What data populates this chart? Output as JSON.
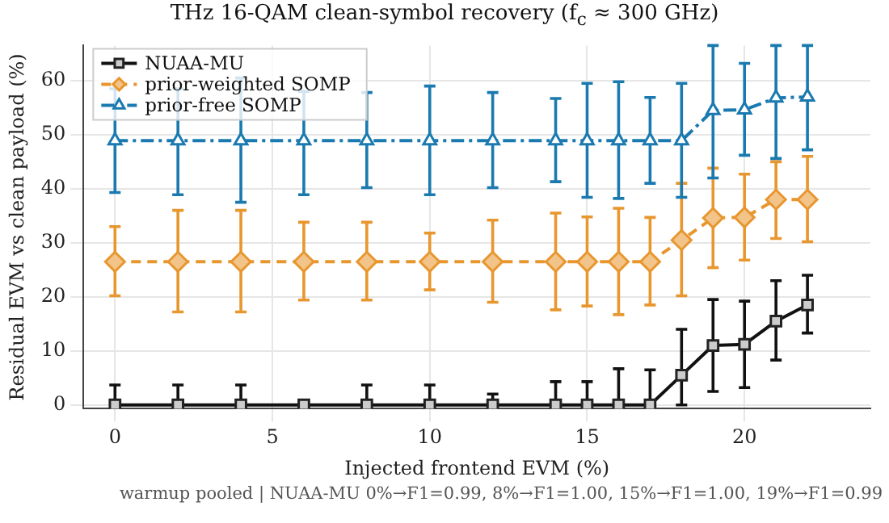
{
  "chart_data": {
    "type": "line",
    "title": "THz 16-QAM clean-symbol recovery (f$_{c}$ ≈ 300 GHz)",
    "xlabel": "Injected frontend EVM (%)",
    "ylabel": "Residual EVM vs clean payload (%)",
    "x": [
      0,
      2,
      4,
      6,
      8,
      10,
      12,
      14,
      15,
      16,
      17,
      18,
      19,
      20,
      21,
      22
    ],
    "series": [
      {
        "name": "NUAA-MU",
        "color": "#111111",
        "marker": "square",
        "line_style": "solid",
        "values": [
          0,
          0,
          0,
          0,
          0,
          0,
          0,
          0,
          0,
          0,
          0,
          5.5,
          11,
          11.2,
          15.5,
          18.5
        ],
        "errors": [
          [
            0,
            3.7
          ],
          [
            0,
            3.7
          ],
          [
            0,
            3.7
          ],
          [
            0,
            0.5
          ],
          [
            0,
            3.7
          ],
          [
            0,
            3.7
          ],
          [
            0,
            2
          ],
          [
            0,
            4.3
          ],
          [
            0,
            4.3
          ],
          [
            0,
            6.7
          ],
          [
            0,
            6.5
          ],
          [
            0,
            14
          ],
          [
            2.5,
            19.5
          ],
          [
            3.2,
            19.2
          ],
          [
            8.3,
            23
          ],
          [
            13.3,
            24
          ]
        ]
      },
      {
        "name": "prior-weighted SOMP",
        "color": "#e8962e",
        "marker": "diamond",
        "line_style": "dashed",
        "values": [
          26.5,
          26.5,
          26.5,
          26.5,
          26.5,
          26.5,
          26.5,
          26.5,
          26.5,
          26.5,
          26.5,
          30.5,
          34.6,
          34.7,
          38,
          38
        ],
        "errors": [
          [
            20.2,
            33
          ],
          [
            17.2,
            36
          ],
          [
            17.2,
            36
          ],
          [
            19.4,
            33.8
          ],
          [
            19.4,
            33.8
          ],
          [
            21.3,
            31.8
          ],
          [
            19,
            34.2
          ],
          [
            17.6,
            35.5
          ],
          [
            18.3,
            34.8
          ],
          [
            16.7,
            36.4
          ],
          [
            18.5,
            34.7
          ],
          [
            20.2,
            41
          ],
          [
            25.4,
            43.8
          ],
          [
            26.8,
            42.7
          ],
          [
            30.8,
            45
          ],
          [
            30.2,
            46
          ]
        ]
      },
      {
        "name": "prior-free SOMP",
        "color": "#1a7ab0",
        "marker": "triangle",
        "line_style": "dashdot",
        "values": [
          48.9,
          48.9,
          48.9,
          48.9,
          48.9,
          48.9,
          48.9,
          48.9,
          48.9,
          48.9,
          48.9,
          48.9,
          54.5,
          54.6,
          56.8,
          57
        ],
        "errors": [
          [
            39.3,
            58.5
          ],
          [
            38.9,
            58.5
          ],
          [
            37.5,
            60.5
          ],
          [
            38.9,
            58
          ],
          [
            40.2,
            57.8
          ],
          [
            38.9,
            59
          ],
          [
            40.2,
            57.8
          ],
          [
            41.3,
            56.7
          ],
          [
            38.4,
            59.5
          ],
          [
            38.2,
            59.8
          ],
          [
            41,
            56.9
          ],
          [
            38.4,
            59.5
          ],
          [
            42,
            66.5
          ],
          [
            46.2,
            63.2
          ],
          [
            45.6,
            66.5
          ],
          [
            47.2,
            66.5
          ]
        ]
      }
    ],
    "xlim": [
      -1,
      24
    ],
    "ylim": [
      -0.7,
      66.5
    ],
    "xticks": [
      0,
      5,
      10,
      15,
      20
    ],
    "yticks": [
      0,
      10,
      20,
      30,
      40,
      50,
      60
    ],
    "grid": true,
    "legend": "top left",
    "annotations": [
      "warmup pooled | NUAA-MU 0%→F1=0.99, 8%→F1=1.00, 15%→F1=1.00, 19%→F1=0.99"
    ]
  }
}
